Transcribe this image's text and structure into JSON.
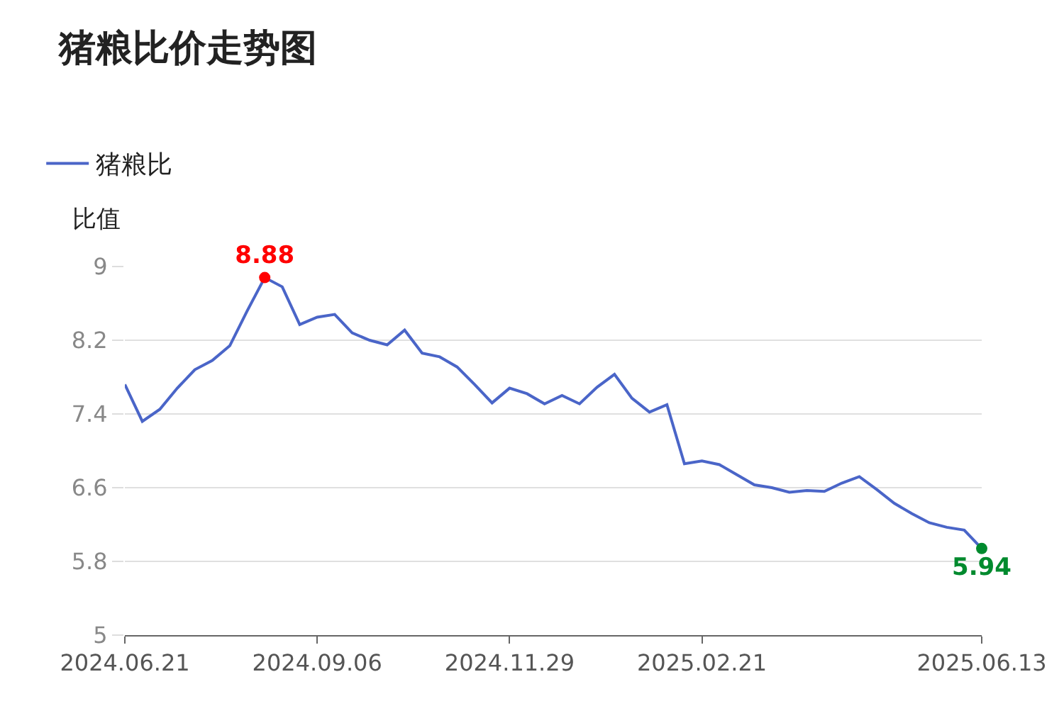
{
  "chart_data": {
    "type": "line",
    "title": "猪粮比价走势图",
    "ylabel": "比值",
    "categories": [
      "2024.06.21",
      null,
      null,
      null,
      null,
      null,
      null,
      null,
      null,
      null,
      null,
      "2024.09.06",
      null,
      null,
      null,
      null,
      null,
      null,
      null,
      null,
      null,
      null,
      "2024.11.29",
      null,
      null,
      null,
      null,
      null,
      null,
      null,
      null,
      null,
      null,
      "2025.02.21",
      null,
      null,
      null,
      null,
      null,
      null,
      null,
      null,
      null,
      null,
      null,
      null,
      null,
      null,
      null,
      "2025.06.13"
    ],
    "series": [
      {
        "name": "猪粮比",
        "color": "#4a65c8",
        "values": [
          7.72,
          7.32,
          7.45,
          7.68,
          7.88,
          7.98,
          8.14,
          8.52,
          8.88,
          8.78,
          8.37,
          8.45,
          8.48,
          8.28,
          8.2,
          8.15,
          8.31,
          8.06,
          8.02,
          7.91,
          7.72,
          7.52,
          7.68,
          7.62,
          7.51,
          7.6,
          7.51,
          7.69,
          7.83,
          7.57,
          7.42,
          7.5,
          6.86,
          6.89,
          6.85,
          6.74,
          6.63,
          6.6,
          6.55,
          6.57,
          6.56,
          6.65,
          6.72,
          6.58,
          6.43,
          6.32,
          6.22,
          6.17,
          6.14,
          5.94
        ],
        "value_labels": [
          null,
          null,
          null,
          null,
          null,
          null,
          null,
          null,
          "8.88",
          null,
          null,
          null,
          null,
          null,
          null,
          null,
          null,
          null,
          null,
          null,
          null,
          null,
          null,
          null,
          null,
          null,
          null,
          null,
          null,
          null,
          null,
          null,
          null,
          null,
          null,
          null,
          null,
          null,
          null,
          null,
          null,
          null,
          null,
          null,
          null,
          null,
          null,
          null,
          null,
          "5.94"
        ],
        "colors": [
          "#4a65c8",
          "#4a65c8",
          "#4a65c8",
          "#4a65c8",
          "#4a65c8",
          "#4a65c8",
          "#4a65c8",
          "#4a65c8",
          "#ff0000",
          "#4a65c8",
          "#4a65c8",
          "#4a65c8",
          "#4a65c8",
          "#4a65c8",
          "#4a65c8",
          "#4a65c8",
          "#4a65c8",
          "#4a65c8",
          "#4a65c8",
          "#4a65c8",
          "#4a65c8",
          "#4a65c8",
          "#4a65c8",
          "#4a65c8",
          "#4a65c8",
          "#4a65c8",
          "#4a65c8",
          "#4a65c8",
          "#4a65c8",
          "#4a65c8",
          "#4a65c8",
          "#4a65c8",
          "#4a65c8",
          "#4a65c8",
          "#4a65c8",
          "#4a65c8",
          "#4a65c8",
          "#4a65c8",
          "#4a65c8",
          "#4a65c8",
          "#4a65c8",
          "#4a65c8",
          "#4a65c8",
          "#4a65c8",
          "#4a65c8",
          "#4a65c8",
          "#4a65c8",
          "#4a65c8",
          "#4a65c8",
          "#008a2e"
        ]
      }
    ],
    "ylim": [
      5,
      9
    ],
    "yticks": [
      5,
      5.8,
      6.6,
      7.4,
      8.2,
      9
    ],
    "grid": "y",
    "legend": "top left"
  }
}
